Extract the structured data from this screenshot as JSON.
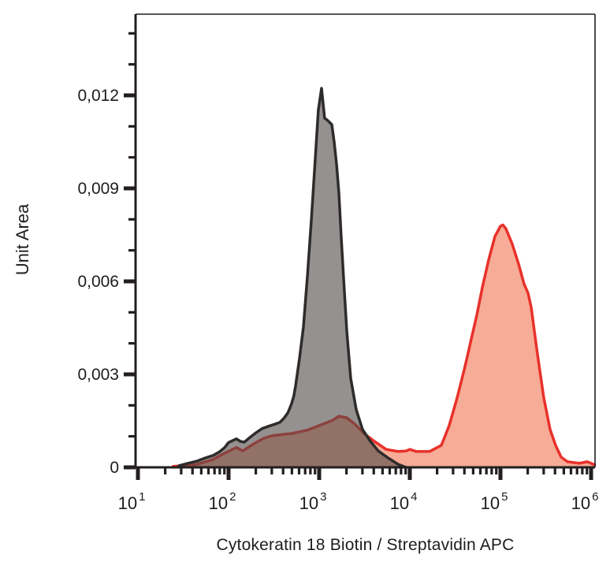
{
  "figure": {
    "background": "#ffffff",
    "frame_color": "#231f20"
  },
  "chart_data": {
    "type": "area",
    "subtype": "flow-cytometry-overlay-histogram",
    "title": "",
    "grid": false,
    "legend": "none",
    "x_axis": {
      "title": "Cytokeratin 18 Biotin / Streptavidin APC",
      "scale": "log10",
      "tick_base": "10",
      "tick_exponents": [
        1,
        2,
        3,
        4,
        5,
        6
      ],
      "min_log": 0.974,
      "max_log": 6.04
    },
    "y_axis": {
      "title": "Unit Area",
      "scale": "linear",
      "tick_labels": [
        "0",
        "0,003",
        "0,006",
        "0,009",
        "0,012"
      ],
      "tick_values": [
        0,
        0.003,
        0.006,
        0.009,
        0.012
      ],
      "minor_step": 0.001,
      "min": 0,
      "max": 0.0146
    },
    "series": [
      {
        "id": "red-histogram",
        "draw_order": 1,
        "stroke": "#E8312A",
        "fill": "#F7AC97",
        "peak_x": 100000,
        "peak_y": 0.0078,
        "points_logx_y": [
          [
            1.39,
            3e-05
          ],
          [
            1.55,
            6e-05
          ],
          [
            1.652,
            0.0001
          ],
          [
            1.826,
            0.00025
          ],
          [
            1.957,
            0.00046
          ],
          [
            2.087,
            0.00064
          ],
          [
            2.157,
            0.00053
          ],
          [
            2.278,
            0.00076
          ],
          [
            2.391,
            0.00094
          ],
          [
            2.478,
            0.00102
          ],
          [
            2.6,
            0.00106
          ],
          [
            2.696,
            0.00109
          ],
          [
            2.87,
            0.0012
          ],
          [
            2.957,
            0.0013
          ],
          [
            3.087,
            0.00145
          ],
          [
            3.15,
            0.00152
          ],
          [
            3.217,
            0.00165
          ],
          [
            3.304,
            0.0016
          ],
          [
            3.391,
            0.0014
          ],
          [
            3.496,
            0.00109
          ],
          [
            3.609,
            0.00084
          ],
          [
            3.739,
            0.00058
          ],
          [
            3.87,
            0.00051
          ],
          [
            3.957,
            0.00053
          ],
          [
            4.0,
            0.00058
          ],
          [
            4.07,
            0.00051
          ],
          [
            4.217,
            0.00051
          ],
          [
            4.348,
            0.00071
          ],
          [
            4.435,
            0.00135
          ],
          [
            4.522,
            0.00224
          ],
          [
            4.609,
            0.00325
          ],
          [
            4.678,
            0.00414
          ],
          [
            4.739,
            0.00491
          ],
          [
            4.8,
            0.0058
          ],
          [
            4.87,
            0.00669
          ],
          [
            4.939,
            0.00745
          ],
          [
            5.0,
            0.00778
          ],
          [
            5.026,
            0.00782
          ],
          [
            5.06,
            0.0077
          ],
          [
            5.13,
            0.0072
          ],
          [
            5.2,
            0.00656
          ],
          [
            5.26,
            0.00592
          ],
          [
            5.304,
            0.00562
          ],
          [
            5.339,
            0.00516
          ],
          [
            5.409,
            0.00364
          ],
          [
            5.478,
            0.00224
          ],
          [
            5.548,
            0.00122
          ],
          [
            5.609,
            0.00071
          ],
          [
            5.67,
            0.00033
          ],
          [
            5.739,
            0.00018
          ],
          [
            5.87,
            0.00013
          ],
          [
            5.957,
            0.00018
          ],
          [
            6.0,
            0.00013
          ],
          [
            6.04,
            8e-05
          ]
        ]
      },
      {
        "id": "gray-histogram",
        "draw_order": 2,
        "stroke": "#2E2C2B",
        "fill": "rgba(82,76,73,0.61)",
        "peak_x": 1000,
        "peak_y": 0.0122,
        "points_logx_y": [
          [
            1.452,
            5e-05
          ],
          [
            1.55,
            0.00013
          ],
          [
            1.652,
            0.0002
          ],
          [
            1.74,
            0.0003
          ],
          [
            1.826,
            0.00038
          ],
          [
            1.9,
            0.0005
          ],
          [
            1.957,
            0.00064
          ],
          [
            2.0,
            0.0008
          ],
          [
            2.087,
            0.00092
          ],
          [
            2.13,
            0.00084
          ],
          [
            2.174,
            0.00081
          ],
          [
            2.23,
            0.00095
          ],
          [
            2.304,
            0.00112
          ],
          [
            2.37,
            0.00125
          ],
          [
            2.435,
            0.00132
          ],
          [
            2.5,
            0.00138
          ],
          [
            2.565,
            0.00145
          ],
          [
            2.61,
            0.00158
          ],
          [
            2.652,
            0.00175
          ],
          [
            2.675,
            0.0019
          ],
          [
            2.696,
            0.00206
          ],
          [
            2.72,
            0.0023
          ],
          [
            2.739,
            0.00262
          ],
          [
            2.783,
            0.00351
          ],
          [
            2.826,
            0.00453
          ],
          [
            2.87,
            0.00618
          ],
          [
            2.913,
            0.00796
          ],
          [
            2.957,
            0.00999
          ],
          [
            2.99,
            0.01152
          ],
          [
            3.026,
            0.01223
          ],
          [
            3.06,
            0.01126
          ],
          [
            3.087,
            0.01121
          ],
          [
            3.139,
            0.01106
          ],
          [
            3.165,
            0.0105
          ],
          [
            3.191,
            0.00979
          ],
          [
            3.217,
            0.00885
          ],
          [
            3.243,
            0.00745
          ],
          [
            3.27,
            0.00605
          ],
          [
            3.304,
            0.0044
          ],
          [
            3.348,
            0.00287
          ],
          [
            3.409,
            0.00186
          ],
          [
            3.478,
            0.00122
          ],
          [
            3.565,
            0.00084
          ],
          [
            3.652,
            0.00053
          ],
          [
            3.757,
            0.00031
          ],
          [
            3.87,
            0.0001
          ],
          [
            3.957,
            0
          ]
        ]
      }
    ]
  }
}
